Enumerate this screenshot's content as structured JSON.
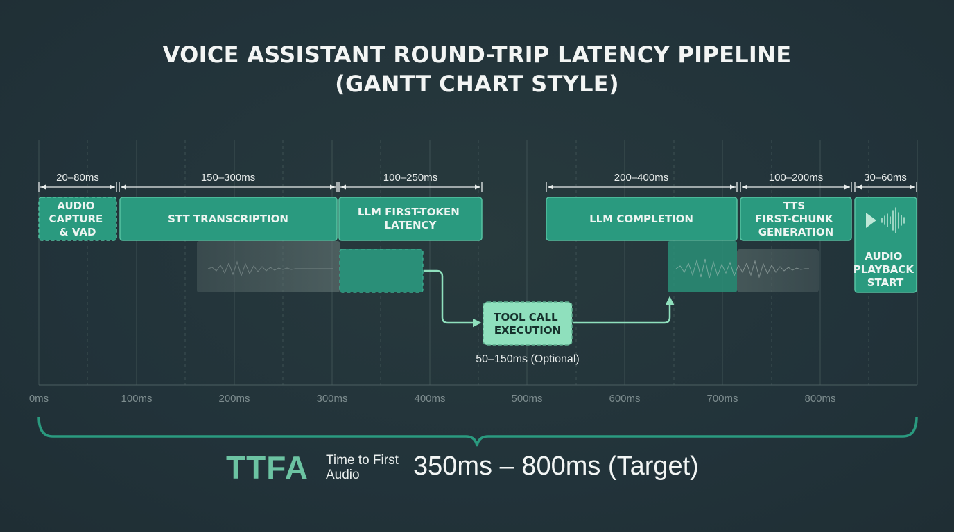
{
  "title": {
    "line1": "VOICE ASSISTANT ROUND-TRIP LATENCY PIPELINE",
    "line2": "(GANTT CHART STYLE)"
  },
  "axis": {
    "ticks": [
      "0ms",
      "100ms",
      "200ms",
      "300ms",
      "400ms",
      "500ms",
      "600ms",
      "700ms",
      "800ms"
    ]
  },
  "stages": [
    {
      "id": "audio-capture",
      "lines": [
        "AUDIO",
        "CAPTURE",
        "& VAD"
      ],
      "duration": "20–80ms",
      "style": "dashed"
    },
    {
      "id": "stt",
      "lines": [
        "STT TRANSCRIPTION"
      ],
      "duration": "150–300ms",
      "style": "solid"
    },
    {
      "id": "llm-first-token",
      "lines": [
        "LLM FIRST-TOKEN",
        "LATENCY"
      ],
      "duration": "100–250ms",
      "style": "solid"
    },
    {
      "id": "llm-completion",
      "lines": [
        "LLM COMPLETION"
      ],
      "duration": "200–400ms",
      "style": "solid"
    },
    {
      "id": "tts",
      "lines": [
        "TTS",
        "FIRST-CHUNK",
        "GENERATION"
      ],
      "duration": "100–200ms",
      "style": "solid"
    },
    {
      "id": "playback",
      "lines": [
        "AUDIO",
        "PLAYBACK",
        "START"
      ],
      "duration": "30–60ms",
      "style": "solid",
      "icon": "play-waveform-icon"
    }
  ],
  "tool_call": {
    "lines": [
      "TOOL CALL",
      "EXECUTION"
    ],
    "note": "50–150ms (Optional)"
  },
  "ttfa": {
    "acronym": "TTFA",
    "description": "Time to First Audio",
    "value": "350ms – 800ms (Target)"
  },
  "colors": {
    "background": "#22333a",
    "bar": "#2a9a7f",
    "bar_border": "#56c2a2",
    "tool_call": "#8fe0bd",
    "accent": "#6cc3a2"
  }
}
